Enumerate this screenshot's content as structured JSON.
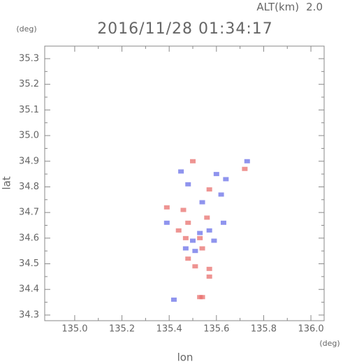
{
  "chart_data": {
    "type": "scatter",
    "altitude_label": "ALT(km)",
    "altitude": "2.0",
    "title": "2016/11/28 01:34:17",
    "y_unit": "(deg)",
    "x_unit": "(deg)",
    "ylabel": "lat",
    "xlabel": "lon",
    "xlim": [
      134.873,
      136.056
    ],
    "ylim": [
      34.278,
      35.349
    ],
    "xticks": [
      {
        "value": 135.0,
        "label": "135.0"
      },
      135.2,
      135.4,
      135.6,
      135.8,
      {
        "value": 136.0,
        "label": "136.0"
      }
    ],
    "yticks": [
      34.3,
      34.4,
      34.5,
      34.6,
      34.7,
      34.8,
      34.9,
      {
        "value": 35.0,
        "label": "35.0"
      },
      35.1,
      35.2,
      35.3
    ],
    "series": [
      {
        "color": "#e8706e",
        "x": [
          135.46,
          135.48,
          135.53,
          135.54,
          135.57,
          135.57,
          135.53,
          135.39,
          135.5,
          135.57,
          135.72,
          135.48,
          135.51,
          135.44,
          135.56,
          135.47,
          135.54
        ],
        "y": [
          34.71,
          34.66,
          34.6,
          34.56,
          34.48,
          34.45,
          34.37,
          34.72,
          34.9,
          34.79,
          34.87,
          34.52,
          34.49,
          34.63,
          34.68,
          34.6,
          34.37
        ]
      },
      {
        "color": "#6a70e8",
        "x": [
          135.45,
          135.5,
          135.57,
          135.63,
          135.6,
          135.64,
          135.48,
          135.39,
          135.54,
          135.53,
          135.47,
          135.42,
          135.73,
          135.62,
          135.51,
          135.59
        ],
        "y": [
          34.86,
          34.59,
          34.63,
          34.66,
          34.85,
          34.83,
          34.81,
          34.66,
          34.74,
          34.62,
          34.56,
          34.36,
          34.9,
          34.77,
          34.55,
          34.59
        ]
      }
    ]
  }
}
